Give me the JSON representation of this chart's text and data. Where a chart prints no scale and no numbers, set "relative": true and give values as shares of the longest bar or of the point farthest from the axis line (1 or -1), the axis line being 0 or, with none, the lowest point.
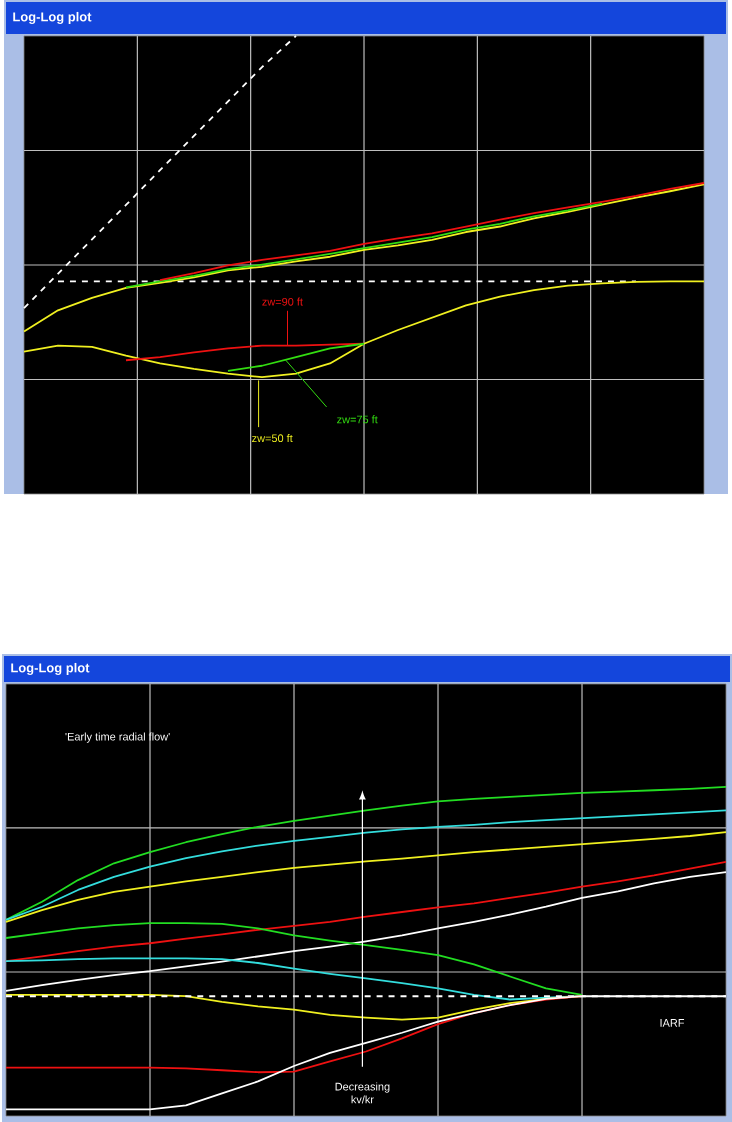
{
  "chart_data": [
    {
      "type": "line",
      "title": "Log-Log plot",
      "relative": true,
      "grid": true,
      "categories": [
        null,
        null,
        null,
        null,
        null,
        null,
        null,
        null,
        null,
        null,
        null,
        null,
        null,
        null,
        null,
        null,
        null,
        null,
        null,
        null,
        null
      ],
      "series": [
        {
          "color": "#ffffff",
          "line_style": "dashed",
          "values": [
            0.406,
            0.481,
            0.556,
            0.631,
            0.707,
            0.782,
            0.857,
            0.932,
            1.0,
            null,
            null,
            null,
            null,
            null,
            null,
            null,
            null,
            null,
            null,
            null,
            null
          ]
        },
        {
          "color": "#ffffff",
          "line_style": "dashed",
          "values": [
            null,
            0.464,
            0.464,
            0.464,
            0.464,
            0.464,
            0.464,
            0.464,
            0.464,
            0.464,
            0.464,
            0.464,
            0.464,
            0.464,
            0.464,
            0.464,
            0.464,
            0.464,
            0.464,
            null,
            null
          ]
        },
        {
          "color": "#f0f020",
          "values": [
            0.355,
            0.401,
            0.428,
            0.45,
            0.461,
            0.473,
            0.488,
            0.496,
            0.508,
            0.518,
            0.533,
            0.543,
            0.555,
            0.572,
            0.584,
            0.602,
            0.616,
            0.632,
            0.647,
            0.661,
            0.676
          ]
        },
        {
          "color": "#33dd11",
          "values": [
            null,
            null,
            null,
            0.451,
            0.464,
            0.476,
            0.491,
            0.501,
            0.512,
            0.524,
            0.537,
            0.549,
            0.561,
            0.577,
            0.59,
            0.606,
            0.619,
            0.634,
            null,
            null,
            null
          ]
        },
        {
          "color": "#ee1111",
          "values": [
            null,
            null,
            null,
            null,
            0.467,
            0.482,
            0.499,
            0.511,
            0.521,
            0.531,
            0.546,
            0.558,
            0.569,
            0.584,
            0.599,
            0.613,
            0.626,
            0.638,
            0.651,
            0.666,
            0.679
          ]
        },
        {
          "color": "#f0f020",
          "values": [
            0.311,
            0.324,
            0.321,
            0.302,
            0.285,
            0.273,
            0.263,
            0.255,
            0.263,
            0.285,
            0.328,
            0.358,
            0.385,
            0.412,
            0.431,
            0.445,
            0.455,
            0.46,
            0.463,
            0.464,
            0.464
          ]
        },
        {
          "color": "#ee1111",
          "values": [
            null,
            null,
            null,
            0.292,
            0.299,
            0.309,
            0.318,
            0.324,
            0.324,
            0.326,
            0.328,
            null,
            null,
            null,
            null,
            null,
            null,
            null,
            null,
            null,
            null
          ]
        },
        {
          "color": "#33dd11",
          "values": [
            null,
            null,
            null,
            null,
            null,
            null,
            0.269,
            0.28,
            0.299,
            0.318,
            0.328,
            null,
            null,
            null,
            null,
            null,
            null,
            null,
            null,
            null,
            null
          ]
        }
      ],
      "annotations": [
        "zw=90 ft",
        "zw=75 ft",
        "zw=50 ft"
      ]
    },
    {
      "type": "line",
      "title": "Log-Log plot",
      "relative": true,
      "grid": true,
      "categories": [
        null,
        null,
        null,
        null,
        null,
        null,
        null,
        null,
        null,
        null,
        null,
        null,
        null,
        null,
        null,
        null,
        null,
        null,
        null,
        null,
        null
      ],
      "series": [
        {
          "color": "#22dd22",
          "values": [
            0.596,
            0.651,
            0.717,
            0.768,
            0.802,
            0.832,
            0.857,
            0.879,
            0.897,
            0.913,
            0.929,
            0.943,
            0.956,
            0.964,
            0.97,
            0.976,
            0.982,
            0.986,
            0.99,
            0.994,
            1.0
          ]
        },
        {
          "color": "#33dddd",
          "values": [
            0.596,
            0.636,
            0.687,
            0.727,
            0.758,
            0.784,
            0.804,
            0.822,
            0.836,
            0.848,
            0.861,
            0.871,
            0.879,
            0.885,
            0.893,
            0.899,
            0.905,
            0.911,
            0.917,
            0.923,
            0.929
          ]
        },
        {
          "color": "#f0f020",
          "values": [
            0.59,
            0.626,
            0.657,
            0.681,
            0.697,
            0.713,
            0.727,
            0.741,
            0.754,
            0.764,
            0.774,
            0.782,
            0.792,
            0.802,
            0.81,
            0.818,
            0.826,
            0.834,
            0.842,
            0.851,
            0.863
          ]
        },
        {
          "color": "#ee1111",
          "values": [
            0.471,
            0.485,
            0.501,
            0.515,
            0.525,
            0.539,
            0.552,
            0.566,
            0.578,
            0.59,
            0.606,
            0.62,
            0.634,
            0.646,
            0.663,
            0.679,
            0.697,
            0.713,
            0.731,
            0.752,
            0.772
          ]
        },
        {
          "color": "#ffffff",
          "values": [
            0.38,
            0.398,
            0.414,
            0.428,
            0.44,
            0.455,
            0.469,
            0.485,
            0.501,
            0.515,
            0.531,
            0.549,
            0.57,
            0.59,
            0.612,
            0.636,
            0.663,
            0.683,
            0.707,
            0.727,
            0.741
          ]
        },
        {
          "color": "#22dd22",
          "values": [
            0.541,
            0.556,
            0.57,
            0.58,
            0.586,
            0.586,
            0.584,
            0.57,
            0.549,
            0.533,
            0.519,
            0.505,
            0.489,
            0.461,
            0.424,
            0.388,
            0.368,
            null,
            null,
            null,
            null
          ]
        },
        {
          "color": "#33dddd",
          "values": [
            0.471,
            0.473,
            0.477,
            0.479,
            0.479,
            0.479,
            0.477,
            0.465,
            0.448,
            0.432,
            0.418,
            0.404,
            0.388,
            0.368,
            0.354,
            0.36,
            0.364,
            null,
            null,
            null,
            null
          ]
        },
        {
          "color": "#f0f020",
          "values": [
            0.368,
            0.368,
            0.368,
            0.368,
            0.368,
            0.364,
            0.347,
            0.333,
            0.323,
            0.307,
            0.299,
            0.293,
            0.299,
            0.323,
            0.343,
            0.356,
            0.364,
            null,
            null,
            null,
            null
          ]
        },
        {
          "color": "#ffffff",
          "line_style": "dashed",
          "values": [
            0.364,
            0.364,
            0.364,
            0.364,
            0.364,
            0.364,
            0.364,
            0.364,
            0.364,
            0.364,
            0.364,
            0.364,
            0.364,
            0.364,
            0.364,
            0.364,
            0.364,
            0.364,
            0.364,
            0.364,
            0.364
          ]
        },
        {
          "color": "#ee1111",
          "values": [
            0.147,
            0.147,
            0.147,
            0.147,
            0.147,
            0.145,
            0.139,
            0.133,
            0.135,
            0.166,
            0.196,
            0.236,
            0.279,
            0.313,
            0.337,
            0.354,
            0.364,
            null,
            null,
            null,
            null
          ]
        },
        {
          "color": "#ffffff",
          "values": [
            0.02,
            0.02,
            0.02,
            0.02,
            0.02,
            0.032,
            0.069,
            0.105,
            0.152,
            0.192,
            0.222,
            0.253,
            0.287,
            0.313,
            0.337,
            0.356,
            0.364,
            0.364,
            0.364,
            0.364,
            0.364
          ]
        }
      ],
      "annotations": [
        "'Early time radial flow'",
        "IARF",
        "Decreasing kv/kr"
      ]
    }
  ]
}
